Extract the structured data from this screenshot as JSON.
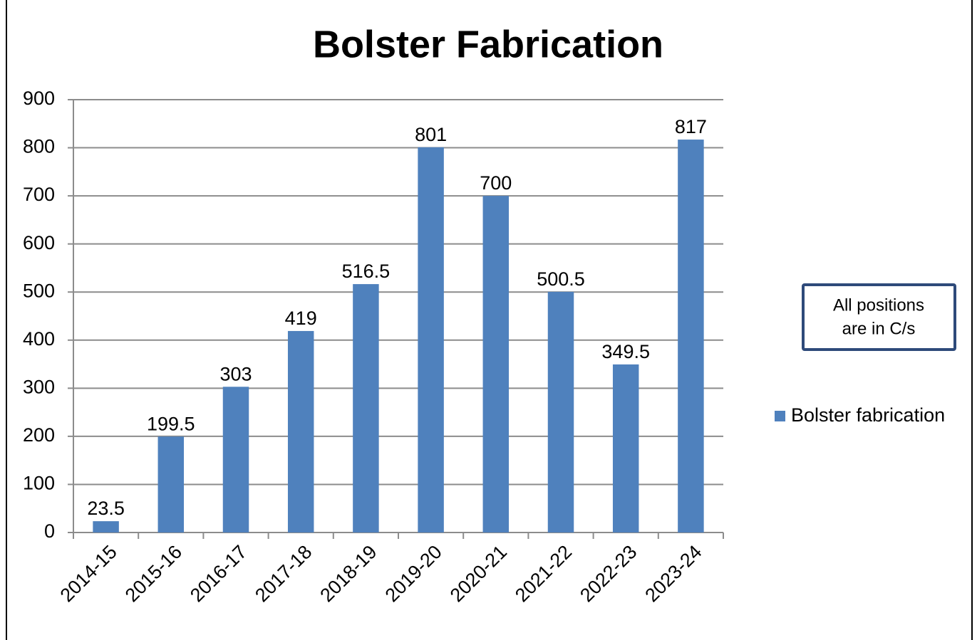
{
  "chart_data": {
    "type": "bar",
    "title": "Bolster Fabrication",
    "categories": [
      "2014-15",
      "2015-16",
      "2016-17",
      "2017-18",
      "2018-19",
      "2019-20",
      "2020-21",
      "2021-22",
      "2022-23",
      "2023-24"
    ],
    "series": [
      {
        "name": "Bolster fabrication",
        "color": "#4f81bd",
        "values": [
          23.5,
          199.5,
          303,
          419,
          516.5,
          801,
          700,
          500.5,
          349.5,
          817
        ]
      }
    ],
    "ylim": [
      0,
      900
    ],
    "yticks": [
      0,
      100,
      200,
      300,
      400,
      500,
      600,
      700,
      800,
      900
    ],
    "grid": true,
    "legend": "right",
    "annotation": [
      "All positions",
      "are in C/s"
    ]
  }
}
